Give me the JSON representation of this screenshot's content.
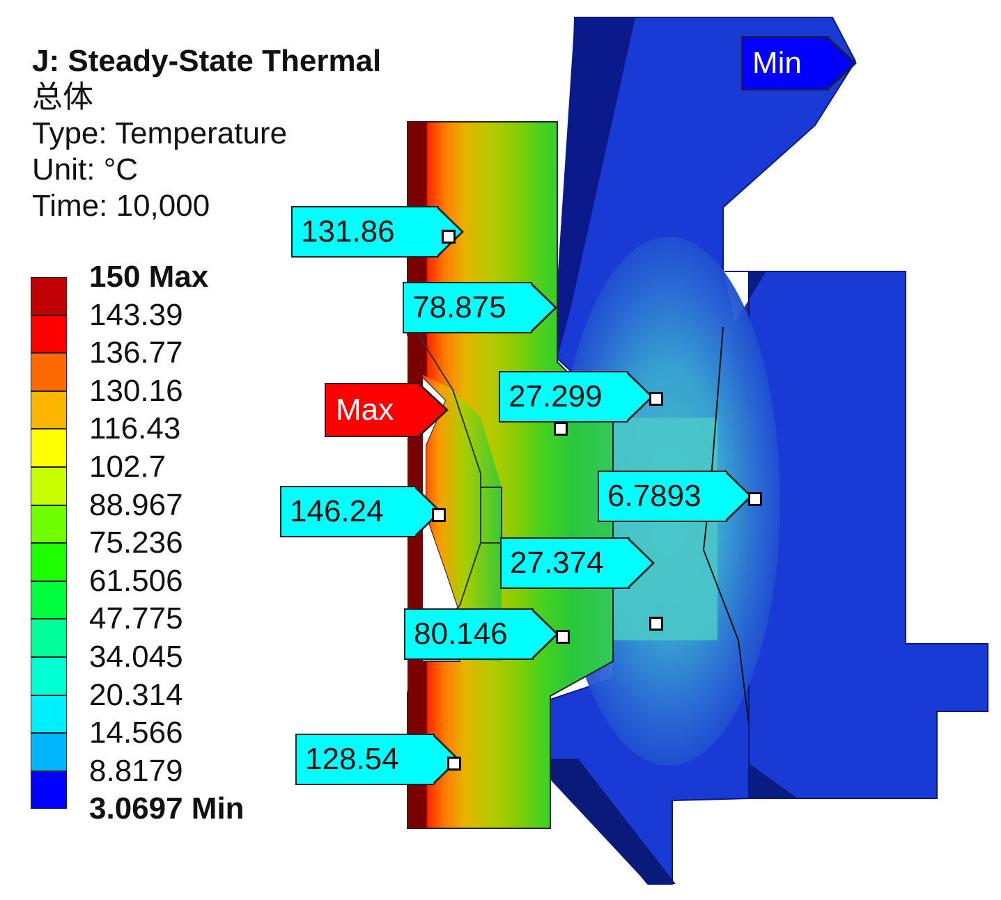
{
  "header": {
    "title": "J: Steady-State Thermal",
    "subtitle": "总体",
    "type": "Type: Temperature",
    "unit": "Unit: °C",
    "time": "Time:  10,000"
  },
  "legend": {
    "levels": [
      {
        "label": "150 Max",
        "color": "#c00000",
        "bold": true
      },
      {
        "label": "143.39",
        "color": "#ff0000",
        "bold": false
      },
      {
        "label": "136.77",
        "color": "#ff6a00",
        "bold": false
      },
      {
        "label": "130.16",
        "color": "#ffb400",
        "bold": false
      },
      {
        "label": "116.43",
        "color": "#ffff00",
        "bold": false
      },
      {
        "label": "102.7",
        "color": "#c8ff00",
        "bold": false
      },
      {
        "label": "88.967",
        "color": "#6eff00",
        "bold": false
      },
      {
        "label": "75.236",
        "color": "#1eff00",
        "bold": false
      },
      {
        "label": "61.506",
        "color": "#00ff3c",
        "bold": false
      },
      {
        "label": "47.775",
        "color": "#00ff96",
        "bold": false
      },
      {
        "label": "34.045",
        "color": "#00ffd2",
        "bold": false
      },
      {
        "label": "20.314",
        "color": "#00f0ff",
        "bold": false
      },
      {
        "label": "14.566",
        "color": "#00b4ff",
        "bold": false
      },
      {
        "label": "8.8179",
        "color": "#0064ff",
        "bold": false
      },
      {
        "label": "3.0697 Min",
        "color": "#0000ff",
        "bold": true
      }
    ]
  },
  "probes": [
    {
      "id": "probe-131-86",
      "label": "131.86"
    },
    {
      "id": "probe-78-875",
      "label": "78.875"
    },
    {
      "id": "probe-27-299",
      "label": "27.299"
    },
    {
      "id": "probe-146-24",
      "label": "146.24"
    },
    {
      "id": "probe-6-7893",
      "label": "6.7893"
    },
    {
      "id": "probe-27-374",
      "label": "27.374"
    },
    {
      "id": "probe-80-146",
      "label": "80.146"
    },
    {
      "id": "probe-128-54",
      "label": "128.54"
    }
  ],
  "tags": {
    "max": "Max",
    "min": "Min"
  },
  "colors": {
    "probe_fill": "#00ffff",
    "max_tag": "#ff0000",
    "min_tag": "#0000ff"
  }
}
